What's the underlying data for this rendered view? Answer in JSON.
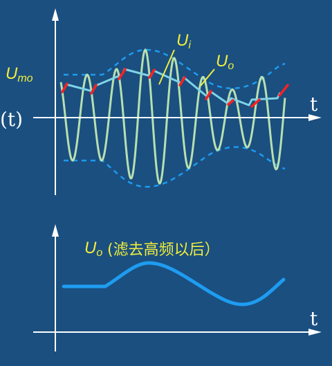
{
  "top": {
    "label_ui": "U",
    "label_ui_sub": "i",
    "label_uo": "U",
    "label_uo_sub": "o",
    "label_umo": "U",
    "label_umo_sub": "mo",
    "axis_left_label": "(t)",
    "axis_t_label": "t"
  },
  "bottom": {
    "label_main": "U",
    "label_sub": "o",
    "label_note": "(滤去高频以后）",
    "axis_t_label": "t"
  },
  "colors": {
    "background": "#1a4f80",
    "axis": "#ffffff",
    "carrier": "#b8e0b0",
    "envelope": "#1e9cf0",
    "output": "#7fd3e6",
    "charge": "#ff2020",
    "filtered": "#1e9cf0",
    "label": "#f2ee3a"
  }
}
